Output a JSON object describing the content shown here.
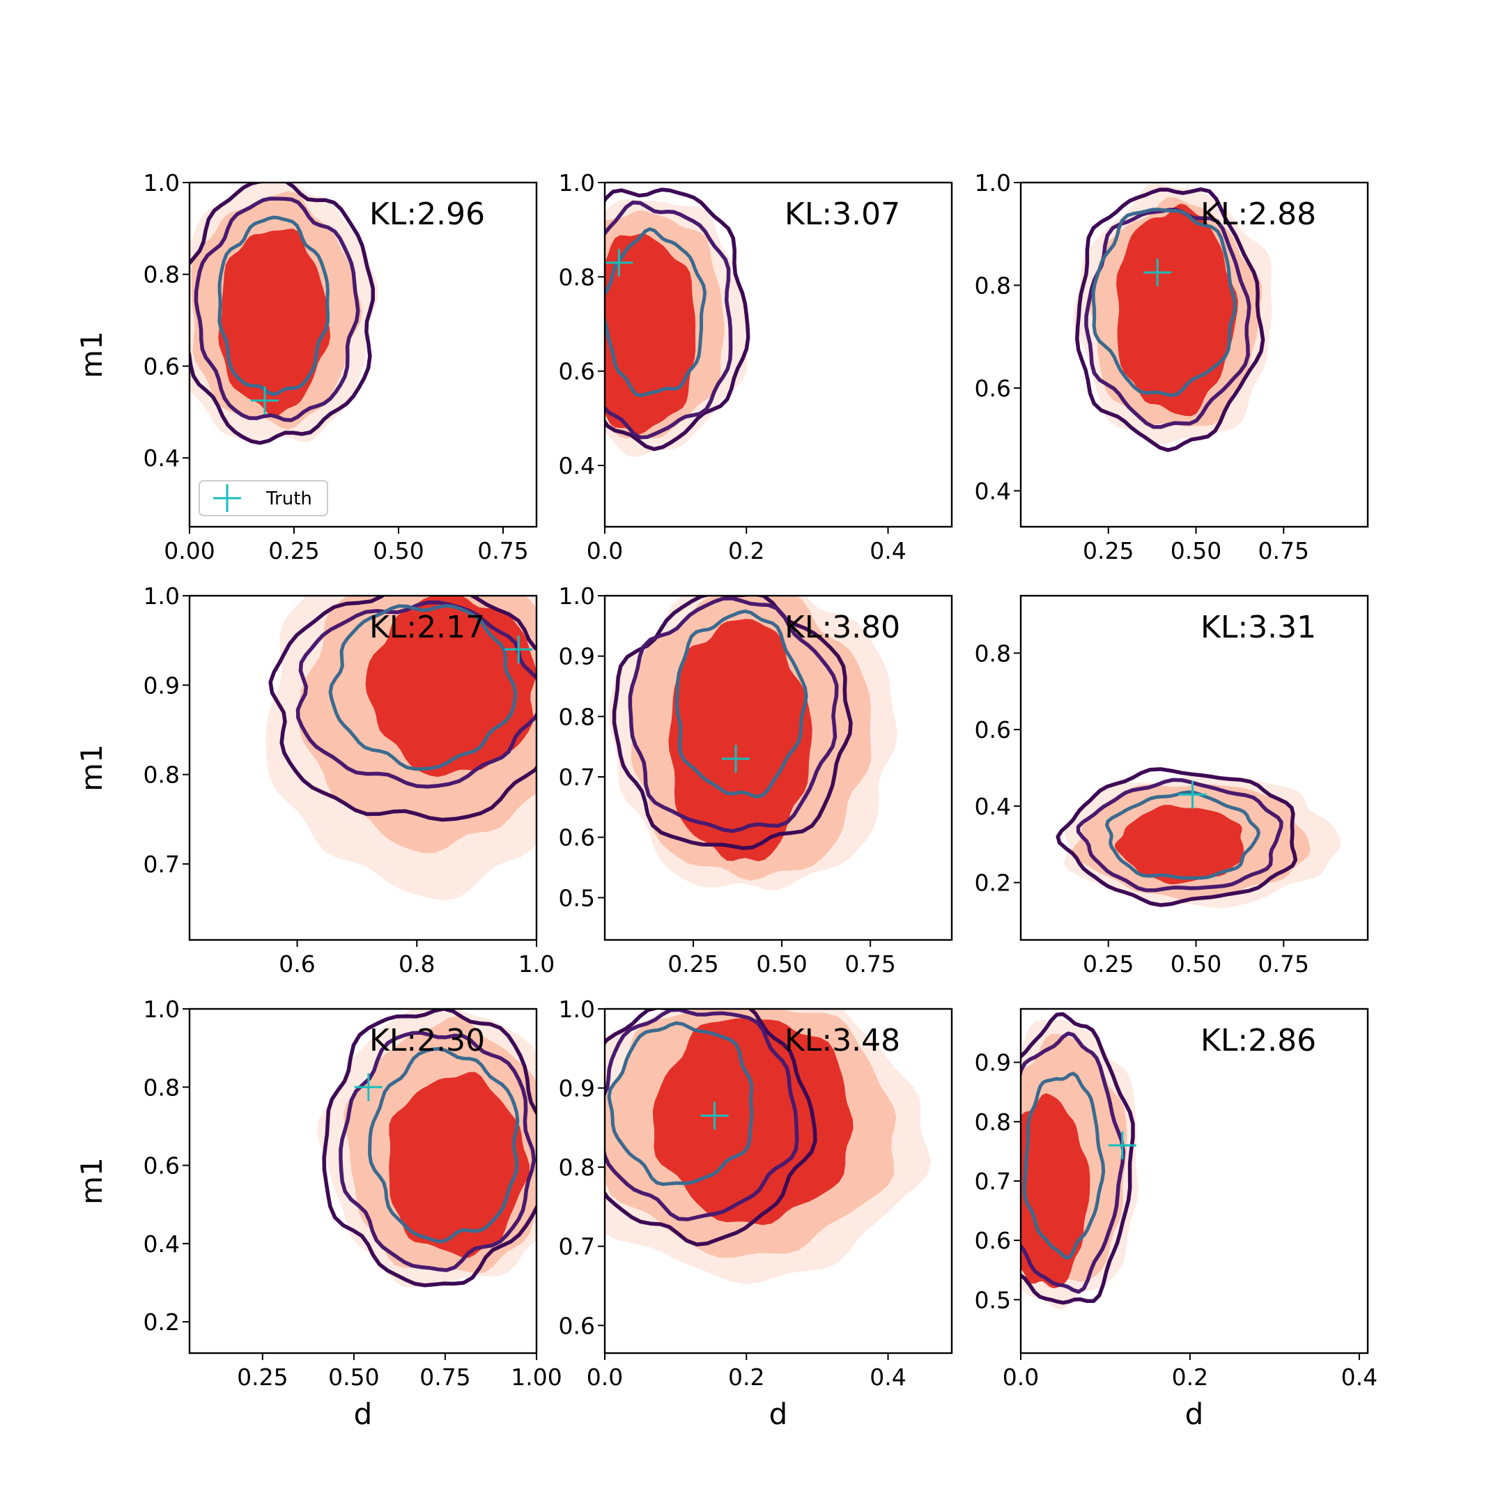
{
  "figure": {
    "xlabel": "d",
    "ylabel": "m1",
    "legend_label": "Truth",
    "truth_color": "#17bebb"
  },
  "chart_data": [
    {
      "type": "contour",
      "xlim": [
        0.0,
        0.83
      ],
      "ylim": [
        0.25,
        1.0
      ],
      "xticks": [
        0.0,
        0.25,
        0.5,
        0.75
      ],
      "xtick_labels": [
        "0.00",
        "0.25",
        "0.50",
        "0.75"
      ],
      "yticks": [
        0.4,
        0.6,
        0.8,
        1.0
      ],
      "ytick_labels": [
        "0.4",
        "0.6",
        "0.8",
        "1.0"
      ],
      "annotation": "KL:2.96",
      "truth": [
        0.18,
        0.525
      ],
      "legend": true,
      "filled": [
        {
          "cx": 0.2,
          "cy": 0.72,
          "rx": 0.24,
          "ry": 0.29
        },
        {
          "cx": 0.2,
          "cy": 0.72,
          "rx": 0.2,
          "ry": 0.25
        },
        {
          "cx": 0.2,
          "cy": 0.7,
          "rx": 0.13,
          "ry": 0.2
        }
      ],
      "lines": [
        {
          "cx": 0.21,
          "cy": 0.72,
          "rx": 0.23,
          "ry": 0.28
        },
        {
          "cx": 0.21,
          "cy": 0.72,
          "rx": 0.19,
          "ry": 0.24
        },
        {
          "cx": 0.2,
          "cy": 0.73,
          "rx": 0.13,
          "ry": 0.19
        }
      ]
    },
    {
      "type": "contour",
      "xlim": [
        0.0,
        0.49
      ],
      "ylim": [
        0.27,
        1.0
      ],
      "xticks": [
        0.0,
        0.2,
        0.4
      ],
      "xtick_labels": [
        "0.0",
        "0.2",
        "0.4"
      ],
      "yticks": [
        0.4,
        0.6,
        0.8,
        1.0
      ],
      "ytick_labels": [
        "0.4",
        "0.6",
        "0.8",
        "1.0"
      ],
      "annotation": "KL:3.07",
      "truth": [
        0.02,
        0.83
      ],
      "legend": false,
      "filled": [
        {
          "cx": 0.06,
          "cy": 0.7,
          "rx": 0.14,
          "ry": 0.27
        },
        {
          "cx": 0.06,
          "cy": 0.7,
          "rx": 0.11,
          "ry": 0.24
        },
        {
          "cx": 0.05,
          "cy": 0.68,
          "rx": 0.08,
          "ry": 0.21
        }
      ],
      "lines": [
        {
          "cx": 0.07,
          "cy": 0.72,
          "rx": 0.13,
          "ry": 0.27
        },
        {
          "cx": 0.07,
          "cy": 0.71,
          "rx": 0.11,
          "ry": 0.24
        },
        {
          "cx": 0.07,
          "cy": 0.72,
          "rx": 0.07,
          "ry": 0.17
        }
      ]
    },
    {
      "type": "contour",
      "xlim": [
        0.0,
        0.99
      ],
      "ylim": [
        0.33,
        1.0
      ],
      "xticks": [
        0.25,
        0.5,
        0.75
      ],
      "xtick_labels": [
        "0.25",
        "0.50",
        "0.75"
      ],
      "yticks": [
        0.4,
        0.6,
        0.8,
        1.0
      ],
      "ytick_labels": [
        "0.4",
        "0.6",
        "0.8",
        "1.0"
      ],
      "annotation": "KL:2.88",
      "truth": [
        0.39,
        0.825
      ],
      "legend": false,
      "filled": [
        {
          "cx": 0.44,
          "cy": 0.74,
          "rx": 0.28,
          "ry": 0.25
        },
        {
          "cx": 0.44,
          "cy": 0.74,
          "rx": 0.24,
          "ry": 0.22
        },
        {
          "cx": 0.44,
          "cy": 0.75,
          "rx": 0.17,
          "ry": 0.2
        }
      ],
      "lines": [
        {
          "cx": 0.42,
          "cy": 0.74,
          "rx": 0.26,
          "ry": 0.25
        },
        {
          "cx": 0.42,
          "cy": 0.74,
          "rx": 0.23,
          "ry": 0.21
        },
        {
          "cx": 0.41,
          "cy": 0.77,
          "rx": 0.2,
          "ry": 0.18
        }
      ]
    },
    {
      "type": "contour",
      "xlim": [
        0.42,
        1.0
      ],
      "ylim": [
        0.615,
        1.0
      ],
      "xticks": [
        0.6,
        0.8,
        1.0
      ],
      "xtick_labels": [
        "0.6",
        "0.8",
        "1.0"
      ],
      "yticks": [
        0.7,
        0.8,
        0.9,
        1.0
      ],
      "ytick_labels": [
        "0.7",
        "0.8",
        "0.9",
        "1.0"
      ],
      "annotation": "KL:2.17",
      "truth": [
        0.97,
        0.94
      ],
      "legend": false,
      "filled": [
        {
          "cx": 0.82,
          "cy": 0.87,
          "rx": 0.27,
          "ry": 0.2
        },
        {
          "cx": 0.83,
          "cy": 0.88,
          "rx": 0.22,
          "ry": 0.16
        },
        {
          "cx": 0.86,
          "cy": 0.9,
          "rx": 0.14,
          "ry": 0.1
        }
      ],
      "lines": [
        {
          "cx": 0.8,
          "cy": 0.88,
          "rx": 0.24,
          "ry": 0.13
        },
        {
          "cx": 0.8,
          "cy": 0.89,
          "rx": 0.2,
          "ry": 0.1
        },
        {
          "cx": 0.81,
          "cy": 0.9,
          "rx": 0.15,
          "ry": 0.09
        }
      ]
    },
    {
      "type": "contour",
      "xlim": [
        0.0,
        0.98
      ],
      "ylim": [
        0.43,
        1.0
      ],
      "xticks": [
        0.25,
        0.5,
        0.75
      ],
      "xtick_labels": [
        "0.25",
        "0.50",
        "0.75"
      ],
      "yticks": [
        0.5,
        0.6,
        0.7,
        0.8,
        0.9,
        1.0
      ],
      "ytick_labels": [
        "0.5",
        "0.6",
        "0.7",
        "0.8",
        "0.9",
        "1.0"
      ],
      "annotation": "KL:3.80",
      "truth": [
        0.37,
        0.73
      ],
      "legend": false,
      "filled": [
        {
          "cx": 0.42,
          "cy": 0.77,
          "rx": 0.4,
          "ry": 0.26
        },
        {
          "cx": 0.41,
          "cy": 0.77,
          "rx": 0.34,
          "ry": 0.24
        },
        {
          "cx": 0.38,
          "cy": 0.76,
          "rx": 0.2,
          "ry": 0.2
        }
      ],
      "lines": [
        {
          "cx": 0.36,
          "cy": 0.79,
          "rx": 0.33,
          "ry": 0.21
        },
        {
          "cx": 0.36,
          "cy": 0.8,
          "rx": 0.29,
          "ry": 0.19
        },
        {
          "cx": 0.38,
          "cy": 0.82,
          "rx": 0.18,
          "ry": 0.15
        }
      ]
    },
    {
      "type": "contour",
      "xlim": [
        0.0,
        0.99
      ],
      "ylim": [
        0.05,
        0.95
      ],
      "xticks": [
        0.25,
        0.5,
        0.75
      ],
      "xtick_labels": [
        "0.25",
        "0.50",
        "0.75"
      ],
      "yticks": [
        0.2,
        0.4,
        0.6,
        0.8
      ],
      "ytick_labels": [
        "0.2",
        "0.4",
        "0.6",
        "0.8"
      ],
      "annotation": "KL:3.31",
      "truth": [
        0.49,
        0.43
      ],
      "legend": false,
      "filled": [
        {
          "cx": 0.51,
          "cy": 0.31,
          "rx": 0.39,
          "ry": 0.17
        },
        {
          "cx": 0.49,
          "cy": 0.31,
          "rx": 0.33,
          "ry": 0.15
        },
        {
          "cx": 0.46,
          "cy": 0.3,
          "rx": 0.18,
          "ry": 0.1
        }
      ],
      "lines": [
        {
          "cx": 0.46,
          "cy": 0.32,
          "rx": 0.33,
          "ry": 0.17
        },
        {
          "cx": 0.46,
          "cy": 0.32,
          "rx": 0.28,
          "ry": 0.14
        },
        {
          "cx": 0.46,
          "cy": 0.32,
          "rx": 0.21,
          "ry": 0.11
        }
      ]
    },
    {
      "type": "contour",
      "xlim": [
        0.05,
        1.0
      ],
      "ylim": [
        0.12,
        1.0
      ],
      "xticks": [
        0.25,
        0.5,
        0.75,
        1.0
      ],
      "xtick_labels": [
        "0.25",
        "0.50",
        "0.75",
        "1.00"
      ],
      "yticks": [
        0.2,
        0.4,
        0.6,
        0.8,
        1.0
      ],
      "ytick_labels": [
        "0.2",
        "0.4",
        "0.6",
        "0.8",
        "1.0"
      ],
      "annotation": "KL:2.30",
      "truth": [
        0.54,
        0.8
      ],
      "legend": false,
      "filled": [
        {
          "cx": 0.75,
          "cy": 0.65,
          "rx": 0.33,
          "ry": 0.36
        },
        {
          "cx": 0.76,
          "cy": 0.64,
          "rx": 0.28,
          "ry": 0.32
        },
        {
          "cx": 0.78,
          "cy": 0.6,
          "rx": 0.19,
          "ry": 0.23
        }
      ],
      "lines": [
        {
          "cx": 0.72,
          "cy": 0.65,
          "rx": 0.3,
          "ry": 0.35
        },
        {
          "cx": 0.73,
          "cy": 0.64,
          "rx": 0.26,
          "ry": 0.3
        },
        {
          "cx": 0.75,
          "cy": 0.65,
          "rx": 0.2,
          "ry": 0.24
        }
      ]
    },
    {
      "type": "contour",
      "xlim": [
        0.0,
        0.49
      ],
      "ylim": [
        0.565,
        1.0
      ],
      "xticks": [
        0.0,
        0.2,
        0.4
      ],
      "xtick_labels": [
        "0.0",
        "0.2",
        "0.4"
      ],
      "yticks": [
        0.6,
        0.7,
        0.8,
        0.9,
        1.0
      ],
      "ytick_labels": [
        "0.6",
        "0.7",
        "0.8",
        "0.9",
        "1.0"
      ],
      "annotation": "KL:3.48",
      "truth": [
        0.155,
        0.865
      ],
      "legend": false,
      "filled": [
        {
          "cx": 0.2,
          "cy": 0.84,
          "rx": 0.25,
          "ry": 0.18
        },
        {
          "cx": 0.2,
          "cy": 0.85,
          "rx": 0.21,
          "ry": 0.16
        },
        {
          "cx": 0.21,
          "cy": 0.86,
          "rx": 0.14,
          "ry": 0.13
        }
      ],
      "lines": [
        {
          "cx": 0.13,
          "cy": 0.86,
          "rx": 0.16,
          "ry": 0.15
        },
        {
          "cx": 0.13,
          "cy": 0.87,
          "rx": 0.14,
          "ry": 0.13
        },
        {
          "cx": 0.11,
          "cy": 0.88,
          "rx": 0.1,
          "ry": 0.1
        }
      ]
    },
    {
      "type": "contour",
      "xlim": [
        0.0,
        0.41
      ],
      "ylim": [
        0.41,
        0.99
      ],
      "xticks": [
        0.0,
        0.2,
        0.4
      ],
      "xtick_labels": [
        "0.0",
        "0.2",
        "0.4"
      ],
      "yticks": [
        0.5,
        0.6,
        0.7,
        0.8,
        0.9
      ],
      "ytick_labels": [
        "0.5",
        "0.6",
        "0.7",
        "0.8",
        "0.9"
      ],
      "annotation": "KL:2.86",
      "truth": [
        0.12,
        0.76
      ],
      "legend": false,
      "filled": [
        {
          "cx": 0.05,
          "cy": 0.73,
          "rx": 0.09,
          "ry": 0.24
        },
        {
          "cx": 0.05,
          "cy": 0.73,
          "rx": 0.075,
          "ry": 0.21
        },
        {
          "cx": 0.03,
          "cy": 0.68,
          "rx": 0.05,
          "ry": 0.16
        }
      ],
      "lines": [
        {
          "cx": 0.05,
          "cy": 0.73,
          "rx": 0.08,
          "ry": 0.24
        },
        {
          "cx": 0.05,
          "cy": 0.73,
          "rx": 0.067,
          "ry": 0.21
        },
        {
          "cx": 0.05,
          "cy": 0.73,
          "rx": 0.045,
          "ry": 0.15
        }
      ]
    }
  ]
}
